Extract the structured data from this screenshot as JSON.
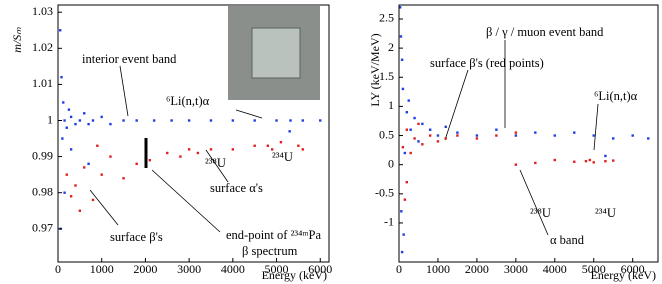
{
  "chart_data": [
    {
      "type": "scatter",
      "ylabel": "m/Sₘ",
      "xlabel": "Energy (keV)",
      "xlim": [
        0,
        6200
      ],
      "ylim": [
        0.9608,
        1.032
      ],
      "xticks": [
        0,
        1000,
        2000,
        3000,
        4000,
        5000,
        6000
      ],
      "yticks": [
        0.97,
        0.98,
        0.99,
        1,
        1.01,
        1.02,
        1.03
      ],
      "series": [
        {
          "color": "#1f3fe0",
          "x": [
            50,
            80,
            100,
            120,
            150,
            200,
            250,
            300,
            400,
            500,
            600,
            700,
            800,
            1000,
            1200,
            1500,
            1800,
            2200,
            2600,
            3000,
            3500,
            4000,
            4500,
            5000,
            5300,
            5320,
            5600,
            6000,
            300,
            700,
            150,
            60
          ],
          "values": [
            1.025,
            1.012,
            0.995,
            1.005,
            1.0,
            0.998,
            1.003,
            1.001,
            0.999,
            1.0,
            1.002,
            0.999,
            1.0,
            1.001,
            0.999,
            1.0,
            1.0,
            1.0,
            1.0,
            1.0,
            1.0,
            1.0,
            1.0,
            1.0,
            0.997,
            1.0,
            1.0,
            1.0,
            0.992,
            0.988,
            0.98,
            0.97
          ]
        },
        {
          "color": "#e01f1f",
          "x": [
            200,
            400,
            600,
            800,
            1000,
            1200,
            1500,
            1800,
            2100,
            500,
            900,
            300,
            2500,
            3000,
            3500,
            4000,
            4500,
            4800,
            4900,
            5100,
            5500,
            5600,
            3200,
            2800
          ],
          "values": [
            0.985,
            0.982,
            0.987,
            0.978,
            0.985,
            0.99,
            0.984,
            0.988,
            0.989,
            0.975,
            0.993,
            0.979,
            0.991,
            0.992,
            0.992,
            0.992,
            0.993,
            0.993,
            0.992,
            0.994,
            0.993,
            0.992,
            0.991,
            0.99
          ]
        }
      ],
      "annotations": [
        "interior event band",
        "⁶Li(n,t)α",
        "²³⁸U",
        "²³⁴U",
        "surface α's",
        "end-point of ²³⁴ᵐPa",
        "β spectrum",
        "surface β's"
      ]
    },
    {
      "type": "scatter",
      "ylabel": "LY (keV/MeV)",
      "xlabel": "Energy (keV)",
      "xlim": [
        0,
        6650
      ],
      "ylim": [
        -1.67,
        2.74
      ],
      "xticks": [
        0,
        1000,
        2000,
        3000,
        4000,
        5000,
        6000
      ],
      "yticks": [
        -1,
        -0.5,
        0,
        0.5,
        1,
        1.5,
        2,
        2.5
      ],
      "series": [
        {
          "color": "#1f3fe0",
          "x": [
            30,
            50,
            80,
            100,
            120,
            150,
            200,
            250,
            300,
            400,
            500,
            600,
            800,
            1000,
            1200,
            1500,
            2000,
            2500,
            3000,
            3500,
            4000,
            4500,
            5000,
            5500,
            6000,
            6400,
            5300,
            80,
            60
          ],
          "values": [
            2.7,
            2.2,
            1.8,
            1.3,
            -1.2,
            0.2,
            0.9,
            1.1,
            0.6,
            0.8,
            0.4,
            0.7,
            0.6,
            0.5,
            0.65,
            0.55,
            0.5,
            0.6,
            0.5,
            0.55,
            0.5,
            0.55,
            0.5,
            0.45,
            0.5,
            0.45,
            0.15,
            -1.5,
            -0.8
          ]
        },
        {
          "color": "#e01f1f",
          "x": [
            100,
            200,
            300,
            400,
            500,
            600,
            800,
            1000,
            1200,
            1500,
            2000,
            2500,
            3000,
            200,
            150,
            4000,
            4500,
            4800,
            4900,
            5000,
            5300,
            5500,
            3000,
            3500
          ],
          "values": [
            0.3,
            0.6,
            0.2,
            0.45,
            0.7,
            0.35,
            0.5,
            0.4,
            0.45,
            0.5,
            0.45,
            0.5,
            0.55,
            -0.3,
            -0.6,
            0.08,
            0.05,
            0.06,
            0.08,
            0.04,
            0.06,
            0.07,
            0.0,
            0.03
          ]
        }
      ],
      "annotations": [
        "β / γ / muon event band",
        "surface β's (red points)",
        "⁶Li(n,t)α",
        "²³⁸U",
        "²³⁴U",
        "α band"
      ]
    }
  ]
}
